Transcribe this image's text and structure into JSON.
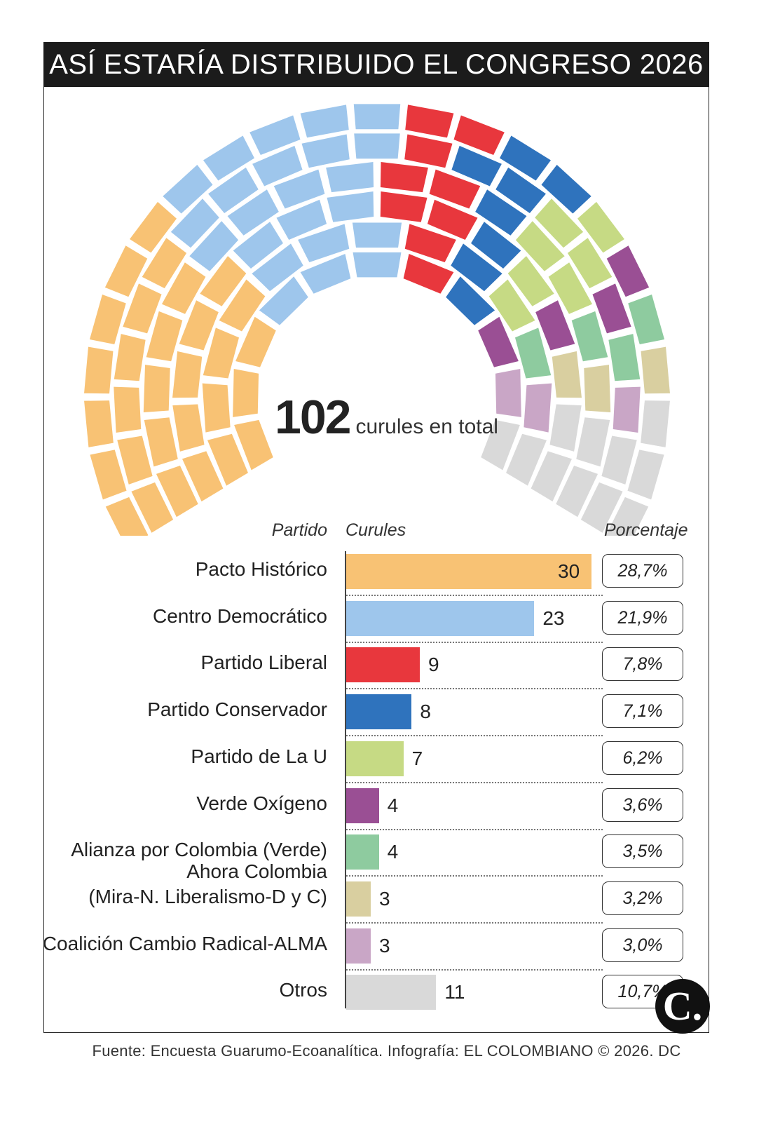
{
  "title": "ASÍ ESTARÍA DISTRIBUIDO EL CONGRESO 2026",
  "total": {
    "number": "102",
    "label": "curules en total"
  },
  "headers": {
    "party": "Partido",
    "seats": "Curules",
    "percent": "Porcentaje"
  },
  "source": "Fuente: Encuesta Guarumo-Ecoanalítica. Infografía: EL COLOMBIANO © 2026. DC",
  "logo_text": "C.",
  "chart_data": {
    "type": "bar",
    "orientation": "horizontal",
    "total_seats": 102,
    "xlim": [
      0,
      30
    ],
    "categories": [
      "Pacto Histórico",
      "Centro Democrático",
      "Partido Liberal",
      "Partido Conservador",
      "Partido de La U",
      "Verde Oxígeno",
      "Alianza por Colombia (Verde)",
      "Ahora Colombia\n(Mira-N. Liberalismo-D y C)",
      "Coalición Cambio Radical-ALMA",
      "Otros"
    ],
    "category_lines": [
      [
        "Pacto Histórico"
      ],
      [
        "Centro Democrático"
      ],
      [
        "Partido Liberal"
      ],
      [
        "Partido Conservador"
      ],
      [
        "Partido de La U"
      ],
      [
        "Verde Oxígeno"
      ],
      [
        "Alianza por Colombia (Verde)"
      ],
      [
        "Ahora Colombia",
        "(Mira-N. Liberalismo-D y C)"
      ],
      [
        "Coalición Cambio Radical-ALMA"
      ],
      [
        "Otros"
      ]
    ],
    "values": [
      30,
      23,
      9,
      8,
      7,
      4,
      4,
      3,
      3,
      11
    ],
    "percentages": [
      "28,7%",
      "21,9%",
      "7,8%",
      "7,1%",
      "6,2%",
      "3,6%",
      "3,5%",
      "3,2%",
      "3,0%",
      "10,7%"
    ],
    "colors": [
      "#f8c274",
      "#9ec6ec",
      "#e8373d",
      "#2f73bd",
      "#c6da84",
      "#9a4f94",
      "#8ecb9f",
      "#d9cfa0",
      "#c9a6c6",
      "#d9d9d9"
    ]
  }
}
